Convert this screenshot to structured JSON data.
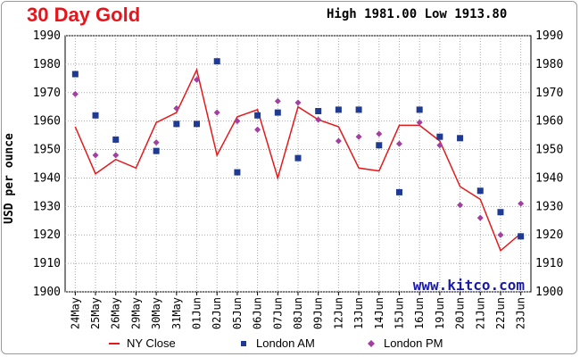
{
  "header": {
    "title": "30 Day Gold",
    "range_text": "High 1981.00 Low 1913.80",
    "ylabel": "USD per ounce"
  },
  "watermark": "www.kitco.com",
  "colors": {
    "title": "#e8141b",
    "ny_close": "#e31a1c",
    "london_am": "#1f3a93",
    "london_pm": "#a23fa0",
    "grid": "#a8a8a8",
    "watermark": "#1a1aa8"
  },
  "chart_data": {
    "type": "line",
    "title": "30 Day Gold",
    "ylabel": "USD per ounce",
    "ylim": [
      1900,
      1990
    ],
    "yticks": [
      1900,
      1910,
      1920,
      1930,
      1940,
      1950,
      1960,
      1970,
      1980,
      1990
    ],
    "grid": true,
    "legend_position": "bottom",
    "categories": [
      "24May",
      "25May",
      "26May",
      "29May",
      "30May",
      "31May",
      "01Jun",
      "02Jun",
      "05Jun",
      "06Jun",
      "07Jun",
      "08Jun",
      "09Jun",
      "12Jun",
      "13Jun",
      "14Jun",
      "15Jun",
      "16Jun",
      "19Jun",
      "20Jun",
      "21Jun",
      "22Jun",
      "23Jun"
    ],
    "series": [
      {
        "name": "NY Close",
        "style": "line",
        "color": "#e31a1c",
        "values": [
          1958,
          1941.5,
          1946.5,
          1943.5,
          1959.5,
          1963,
          1978,
          1948,
          1961.5,
          1964,
          1940,
          1965,
          1960.5,
          1958,
          1943.5,
          1942.5,
          1958.5,
          1958.5,
          1953,
          1937,
          1932.5,
          1914.5,
          1920.5
        ]
      },
      {
        "name": "London AM",
        "style": "square",
        "color": "#1f3a93",
        "values": [
          1976.5,
          1962,
          1953.5,
          null,
          1949.5,
          1959,
          1959,
          1981,
          1942,
          1962,
          1963,
          1947,
          1963.5,
          1964,
          1964,
          1951.5,
          1935,
          1964,
          1954.5,
          1954,
          1935.5,
          1928,
          1919.5
        ]
      },
      {
        "name": "London PM",
        "style": "diamond",
        "color": "#a23fa0",
        "values": [
          1969.5,
          1948,
          1948,
          null,
          1952.5,
          1964.5,
          1974.5,
          1963,
          1960,
          1957,
          1967,
          1966.5,
          1960.5,
          1953,
          1954.5,
          1955.5,
          1952,
          1959.5,
          1951.5,
          1930.5,
          1926,
          1920,
          1931
        ]
      }
    ]
  }
}
